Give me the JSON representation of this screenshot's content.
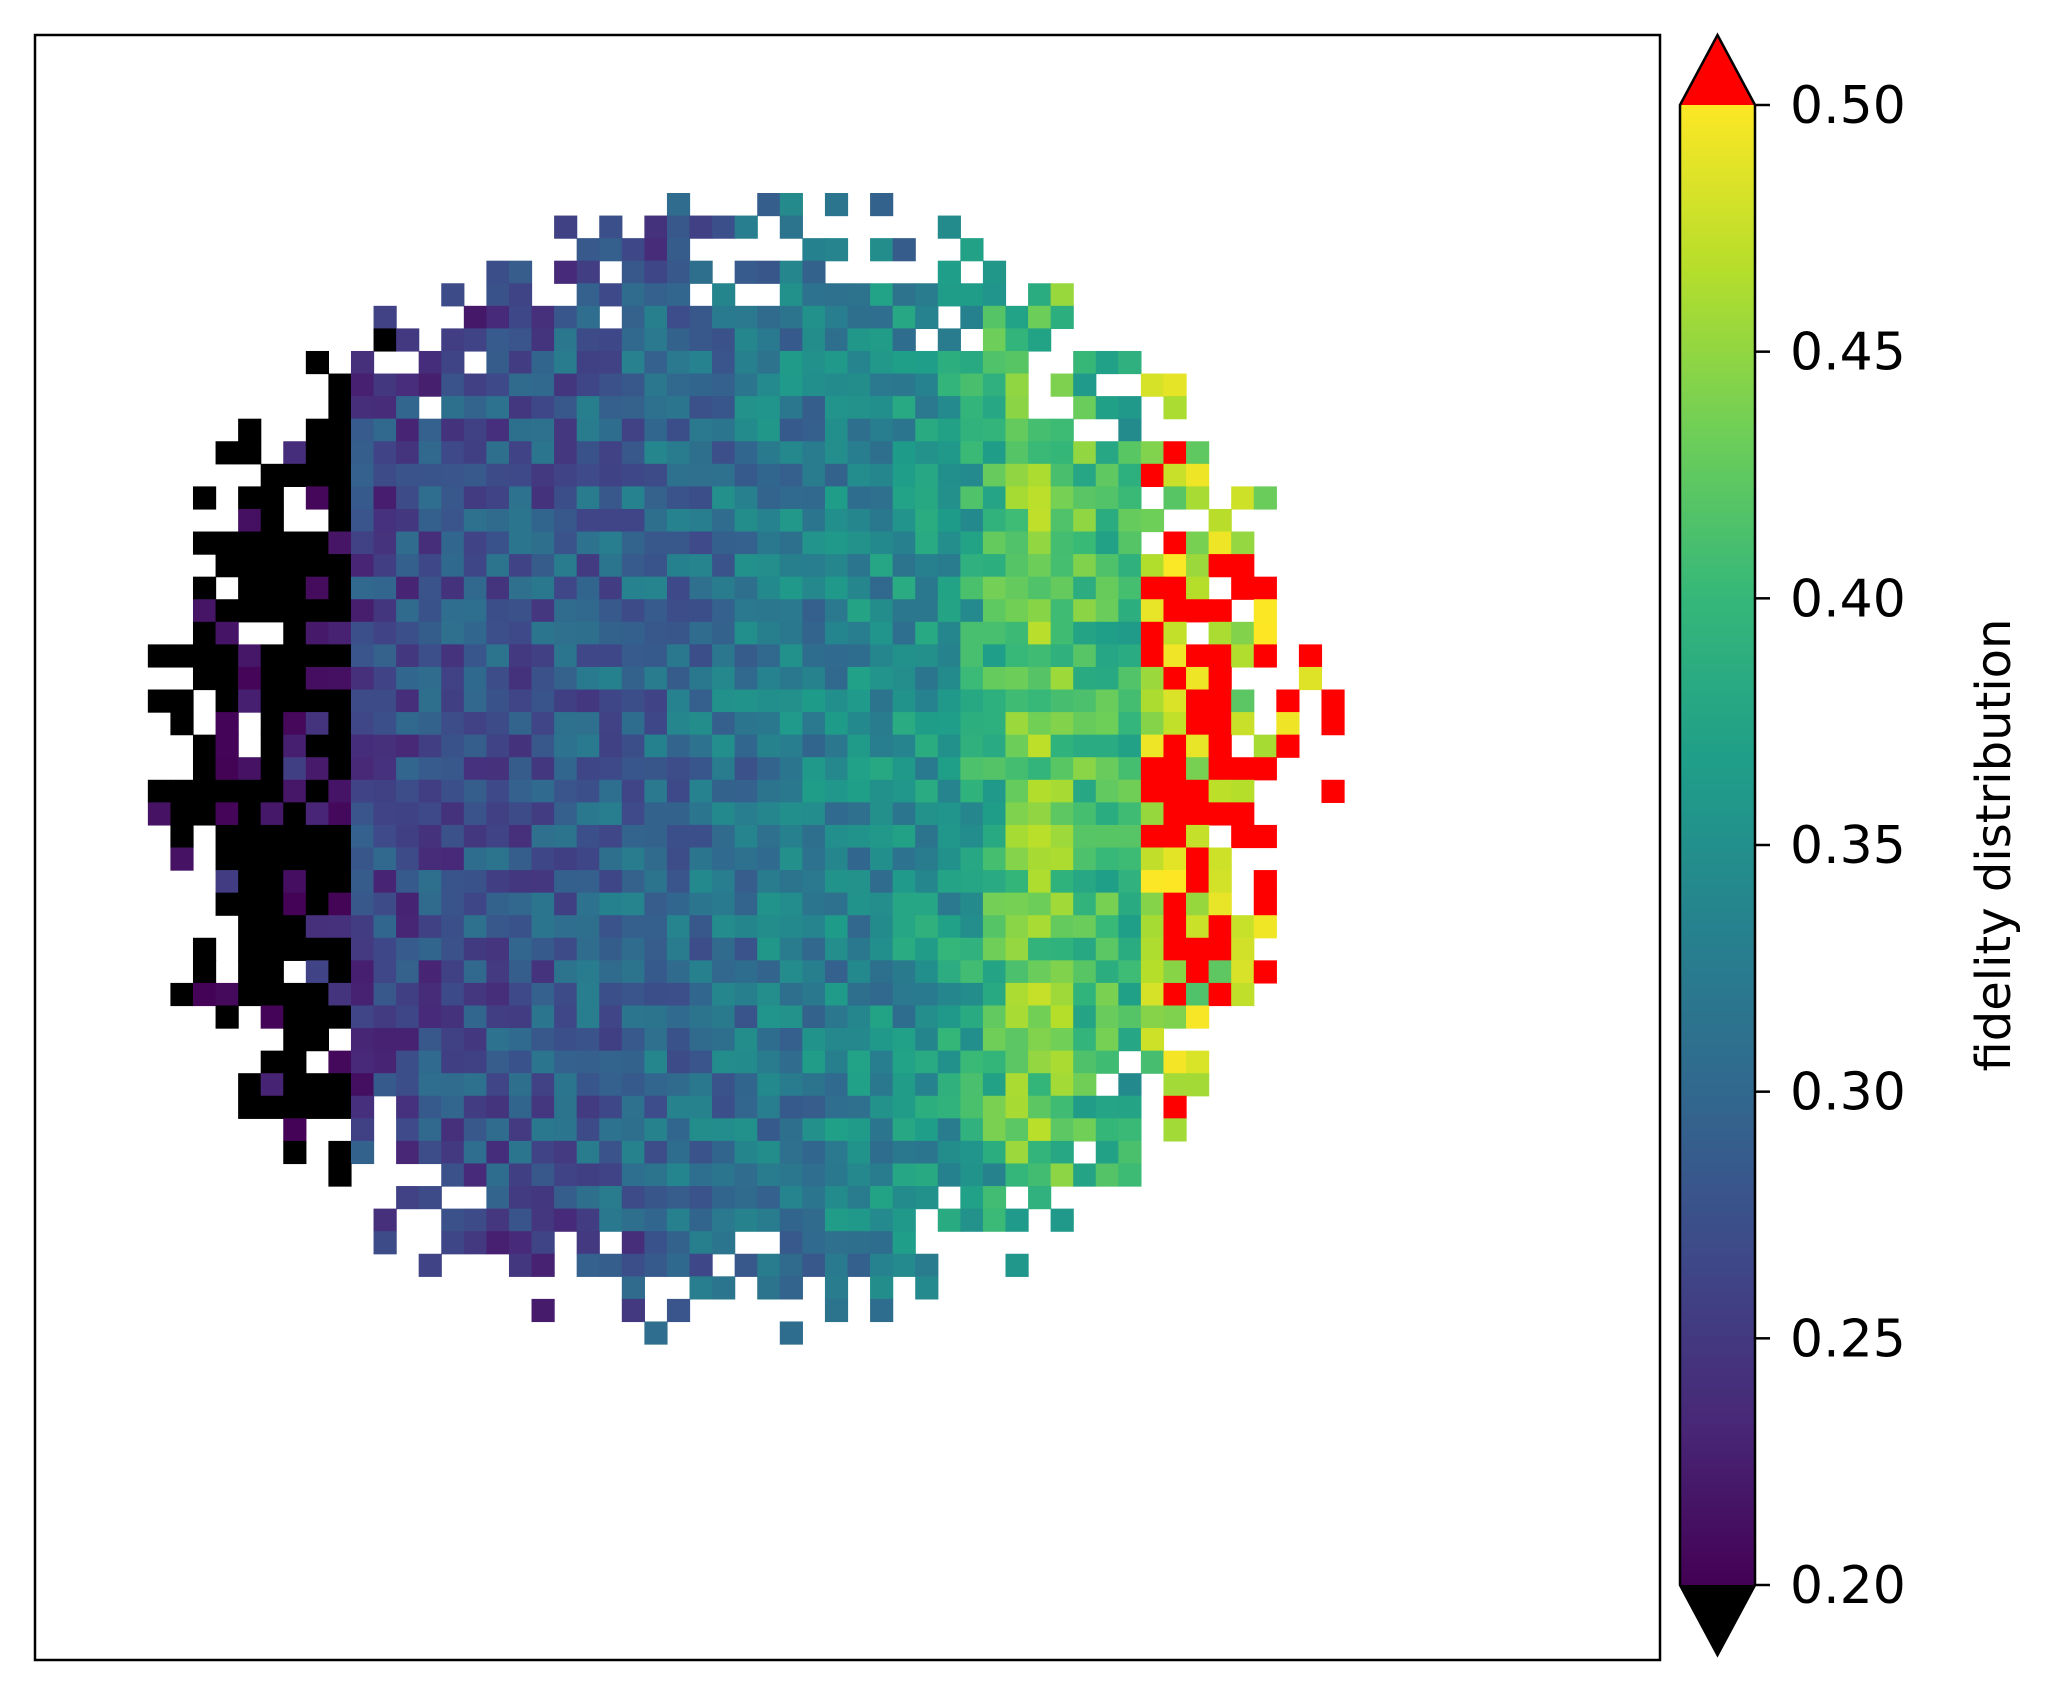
{
  "chart_data": {
    "type": "heatmap",
    "title": "",
    "xlabel": "",
    "ylabel": "",
    "axes_ticks_visible": false,
    "grid": false,
    "colormap": "viridis",
    "colormap_stops": [
      "#440154",
      "#482878",
      "#3e4989",
      "#31688e",
      "#26828e",
      "#1f9e89",
      "#35b779",
      "#6ece58",
      "#b5de2b",
      "#fde725"
    ],
    "under_color": "#000000",
    "over_color": "#ff0000",
    "background_color": "#ffffff",
    "value_range": [
      0.2,
      0.5
    ],
    "grid_size": [
      72,
      72
    ],
    "colorbar": {
      "label": "fidelity distribution",
      "ticks": [
        0.2,
        0.25,
        0.3,
        0.35,
        0.4,
        0.45,
        0.5
      ],
      "tick_labels": [
        "0.20",
        "0.25",
        "0.30",
        "0.35",
        "0.40",
        "0.45",
        "0.50"
      ],
      "extend": "both"
    },
    "regions": {
      "center_fidelity": 0.33,
      "left_edge_fidelity": 0.19,
      "right_edge_fidelity": 0.52,
      "bright_ridge_fidelity": 0.46
    }
  }
}
